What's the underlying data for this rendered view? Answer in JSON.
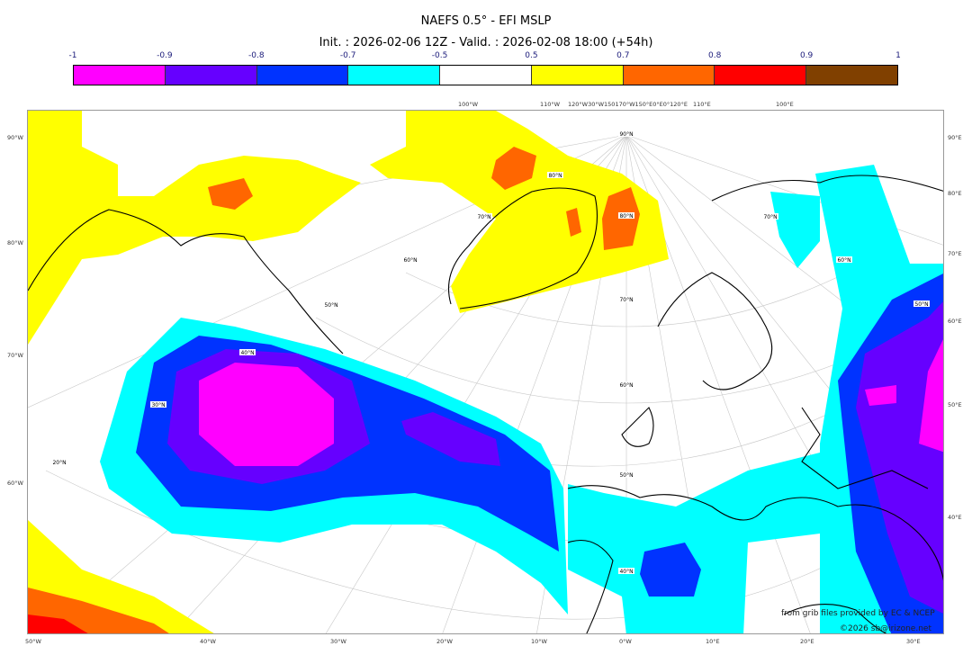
{
  "title": "NAEFS 0.5° - EFI MSLP",
  "subtitle": "Init. : 2026-02-06 12Z - Valid. : 2026-02-08 18:00 (+54h)",
  "colorbar": {
    "ticks": [
      "-1",
      "-0.9",
      "-0.8",
      "-0.7",
      "-0.5",
      "0.5",
      "0.7",
      "0.8",
      "0.9",
      "1"
    ],
    "colors": [
      "#ff00ff",
      "#6600ff",
      "#0033ff",
      "#00ffff",
      "#ffffff",
      "#ffff00",
      "#ff6600",
      "#ff0000",
      "#804000"
    ]
  },
  "axes": {
    "left": [
      "90°W",
      "80°W",
      "70°W",
      "60°W"
    ],
    "right": [
      "90°E",
      "80°E",
      "70°E",
      "60°E",
      "50°E",
      "40°E"
    ],
    "bottom": [
      "50°W",
      "40°W",
      "30°W",
      "20°W",
      "10°W",
      "0°W",
      "10°E",
      "20°E",
      "30°E"
    ],
    "top": [
      "100°W",
      "110°W",
      "120°W30°W150170°W150°E0°E0°120°E",
      "110°E",
      "100°E"
    ]
  },
  "lat_labels": [
    "90°N",
    "80°N",
    "80°N",
    "70°N",
    "70°N",
    "70°N",
    "60°N",
    "60°N",
    "60°N",
    "50°N",
    "50°N",
    "50°N",
    "40°N",
    "40°N",
    "30°N",
    "20°N"
  ],
  "credits": {
    "source": "from grib files provided by EC & NCEP",
    "copyright": "©2026 sb@irizone.net"
  }
}
